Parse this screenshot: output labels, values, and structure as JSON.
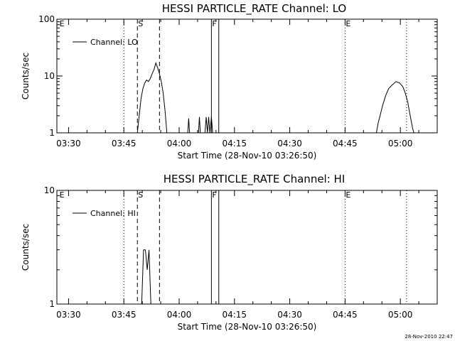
{
  "footer": {
    "timestamp": "28-Nov-2010 22:47"
  },
  "chart_data": [
    {
      "type": "line",
      "title": "HESSI PARTICLE_RATE Channel: LO",
      "xlabel": "Start Time (28-Nov-10 03:26:50)",
      "ylabel": "Counts/sec",
      "yscale": "log",
      "xlim": [
        "03:26:50",
        "05:10:00"
      ],
      "ylim": [
        1,
        100
      ],
      "x_ticks": [
        "03:30",
        "03:45",
        "04:00",
        "04:15",
        "04:30",
        "04:45",
        "05:00"
      ],
      "y_ticks": [
        "1",
        "10",
        "100"
      ],
      "legend": "top-left",
      "series": [
        {
          "name": "Channel: LO",
          "segments": [
            [
              [
                "03:48:40",
                1
              ],
              [
                "03:49:10",
                2
              ],
              [
                "03:49:40",
                4
              ],
              [
                "03:50:10",
                6
              ],
              [
                "03:50:40",
                7.5
              ],
              [
                "03:51:10",
                8.5
              ],
              [
                "03:51:40",
                8
              ],
              [
                "03:52:10",
                9
              ],
              [
                "03:52:40",
                11
              ],
              [
                "03:53:10",
                13
              ],
              [
                "03:53:40",
                17
              ],
              [
                "03:54:10",
                14
              ],
              [
                "03:54:40",
                11
              ],
              [
                "03:55:10",
                8
              ],
              [
                "03:55:40",
                5
              ],
              [
                "03:56:10",
                2.5
              ],
              [
                "03:56:40",
                1
              ]
            ],
            [
              [
                "04:02:20",
                1
              ],
              [
                "04:02:35",
                1.8
              ],
              [
                "04:02:50",
                1
              ]
            ],
            [
              [
                "04:05:15",
                1
              ],
              [
                "04:05:30",
                1.9
              ],
              [
                "04:05:45",
                1
              ]
            ],
            [
              [
                "04:07:00",
                1
              ],
              [
                "04:07:20",
                1.9
              ],
              [
                "04:07:40",
                1
              ],
              [
                "04:08:00",
                1.9
              ],
              [
                "04:08:20",
                1
              ],
              [
                "04:08:45",
                1.9
              ],
              [
                "04:09:05",
                1
              ]
            ],
            [
              [
                "04:53:30",
                1
              ],
              [
                "04:54:00",
                1.5
              ],
              [
                "04:54:30",
                2
              ],
              [
                "04:55:10",
                3
              ],
              [
                "04:56:00",
                4.5
              ],
              [
                "04:56:50",
                6
              ],
              [
                "04:57:50",
                7
              ],
              [
                "04:58:50",
                8
              ],
              [
                "04:59:50",
                7.5
              ],
              [
                "05:00:40",
                6.5
              ],
              [
                "05:01:20",
                5
              ],
              [
                "05:02:00",
                3.5
              ],
              [
                "05:02:40",
                2
              ],
              [
                "05:03:20",
                1.2
              ],
              [
                "05:03:40",
                1
              ]
            ]
          ]
        }
      ],
      "markers": [
        {
          "x": "03:27:20",
          "label": "E",
          "style": "dotted",
          "line": false
        },
        {
          "x": "03:45:00",
          "label": "",
          "style": "dotted",
          "line": true
        },
        {
          "x": "03:48:40",
          "label": "S",
          "style": "dashed",
          "line": true
        },
        {
          "x": "03:54:40",
          "label": "",
          "style": "dashed",
          "line": true
        },
        {
          "x": "04:08:45",
          "label": "F",
          "style": "solid",
          "line": true
        },
        {
          "x": "04:10:45",
          "label": "",
          "style": "solid",
          "line": true
        },
        {
          "x": "04:45:00",
          "label": "E",
          "style": "dotted",
          "line": true
        },
        {
          "x": "05:01:40",
          "label": "",
          "style": "dotted",
          "line": true
        }
      ]
    },
    {
      "type": "line",
      "title": "HESSI PARTICLE_RATE Channel: HI",
      "xlabel": "Start Time (28-Nov-10 03:26:50)",
      "ylabel": "Counts/sec",
      "yscale": "log",
      "xlim": [
        "03:26:50",
        "05:10:00"
      ],
      "ylim": [
        1,
        10
      ],
      "x_ticks": [
        "03:30",
        "03:45",
        "04:00",
        "04:15",
        "04:30",
        "04:45",
        "05:00"
      ],
      "y_ticks": [
        "1",
        "10"
      ],
      "legend": "top-left",
      "series": [
        {
          "name": "Channel: HI",
          "segments": [
            [
              [
                "03:49:50",
                1
              ],
              [
                "03:50:20",
                3
              ],
              [
                "03:50:50",
                3
              ],
              [
                "03:51:20",
                2
              ],
              [
                "03:51:50",
                3
              ],
              [
                "03:52:20",
                1
              ]
            ]
          ]
        }
      ],
      "markers": [
        {
          "x": "03:27:20",
          "label": "E",
          "style": "dotted",
          "line": false
        },
        {
          "x": "03:45:00",
          "label": "",
          "style": "dotted",
          "line": true
        },
        {
          "x": "03:48:40",
          "label": "S",
          "style": "dashed",
          "line": true
        },
        {
          "x": "03:54:40",
          "label": "",
          "style": "dashed",
          "line": true
        },
        {
          "x": "04:08:45",
          "label": "F",
          "style": "solid",
          "line": true
        },
        {
          "x": "04:10:45",
          "label": "",
          "style": "solid",
          "line": true
        },
        {
          "x": "04:45:00",
          "label": "E",
          "style": "dotted",
          "line": true
        },
        {
          "x": "05:01:40",
          "label": "",
          "style": "dotted",
          "line": true
        }
      ]
    }
  ]
}
